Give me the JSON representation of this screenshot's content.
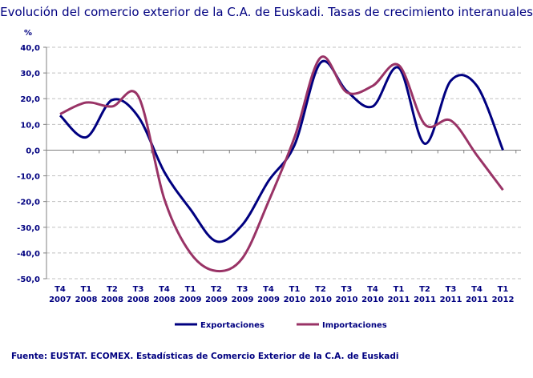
{
  "chart_data": {
    "type": "line",
    "title": "Evolución del comercio exterior de la C.A. de Euskadi. Tasas de crecimiento interanuales",
    "ylabel": "%",
    "ylim": [
      -50,
      40
    ],
    "yticks": [
      "40,0",
      "30,0",
      "20,0",
      "10,0",
      "0,0",
      "-10,0",
      "-20,0",
      "-30,0",
      "-40,0",
      "-50,0"
    ],
    "grid": true,
    "legend": "bottom",
    "categories": [
      [
        "T4",
        "2007"
      ],
      [
        "T1",
        "2008"
      ],
      [
        "T2",
        "2008"
      ],
      [
        "T3",
        "2008"
      ],
      [
        "T4",
        "2008"
      ],
      [
        "T1",
        "2009"
      ],
      [
        "T2",
        "2009"
      ],
      [
        "T3",
        "2009"
      ],
      [
        "T4",
        "2009"
      ],
      [
        "T1",
        "2010"
      ],
      [
        "T2",
        "2010"
      ],
      [
        "T3",
        "2010"
      ],
      [
        "T4",
        "2010"
      ],
      [
        "T1",
        "2011"
      ],
      [
        "T2",
        "2011"
      ],
      [
        "T3",
        "2011"
      ],
      [
        "T4",
        "2011"
      ],
      [
        "T1",
        "2012"
      ]
    ],
    "series": [
      {
        "name": "Exportaciones",
        "color": "#000080",
        "values": [
          13.5,
          5,
          19.5,
          13,
          -8.5,
          -23,
          -35.5,
          -29,
          -12,
          2,
          34,
          23,
          17,
          32,
          2.5,
          27,
          25,
          0
        ]
      },
      {
        "name": "Importaciones",
        "color": "#993366",
        "values": [
          14,
          18.5,
          17,
          21,
          -19,
          -40,
          -47,
          -42,
          -20,
          5,
          36,
          22.5,
          25,
          33,
          10,
          11.5,
          -2,
          -15.5
        ]
      }
    ]
  },
  "source": "Fuente: EUSTAT. ECOMEX. Estadísticas de Comercio Exterior de la C.A. de Euskadi"
}
